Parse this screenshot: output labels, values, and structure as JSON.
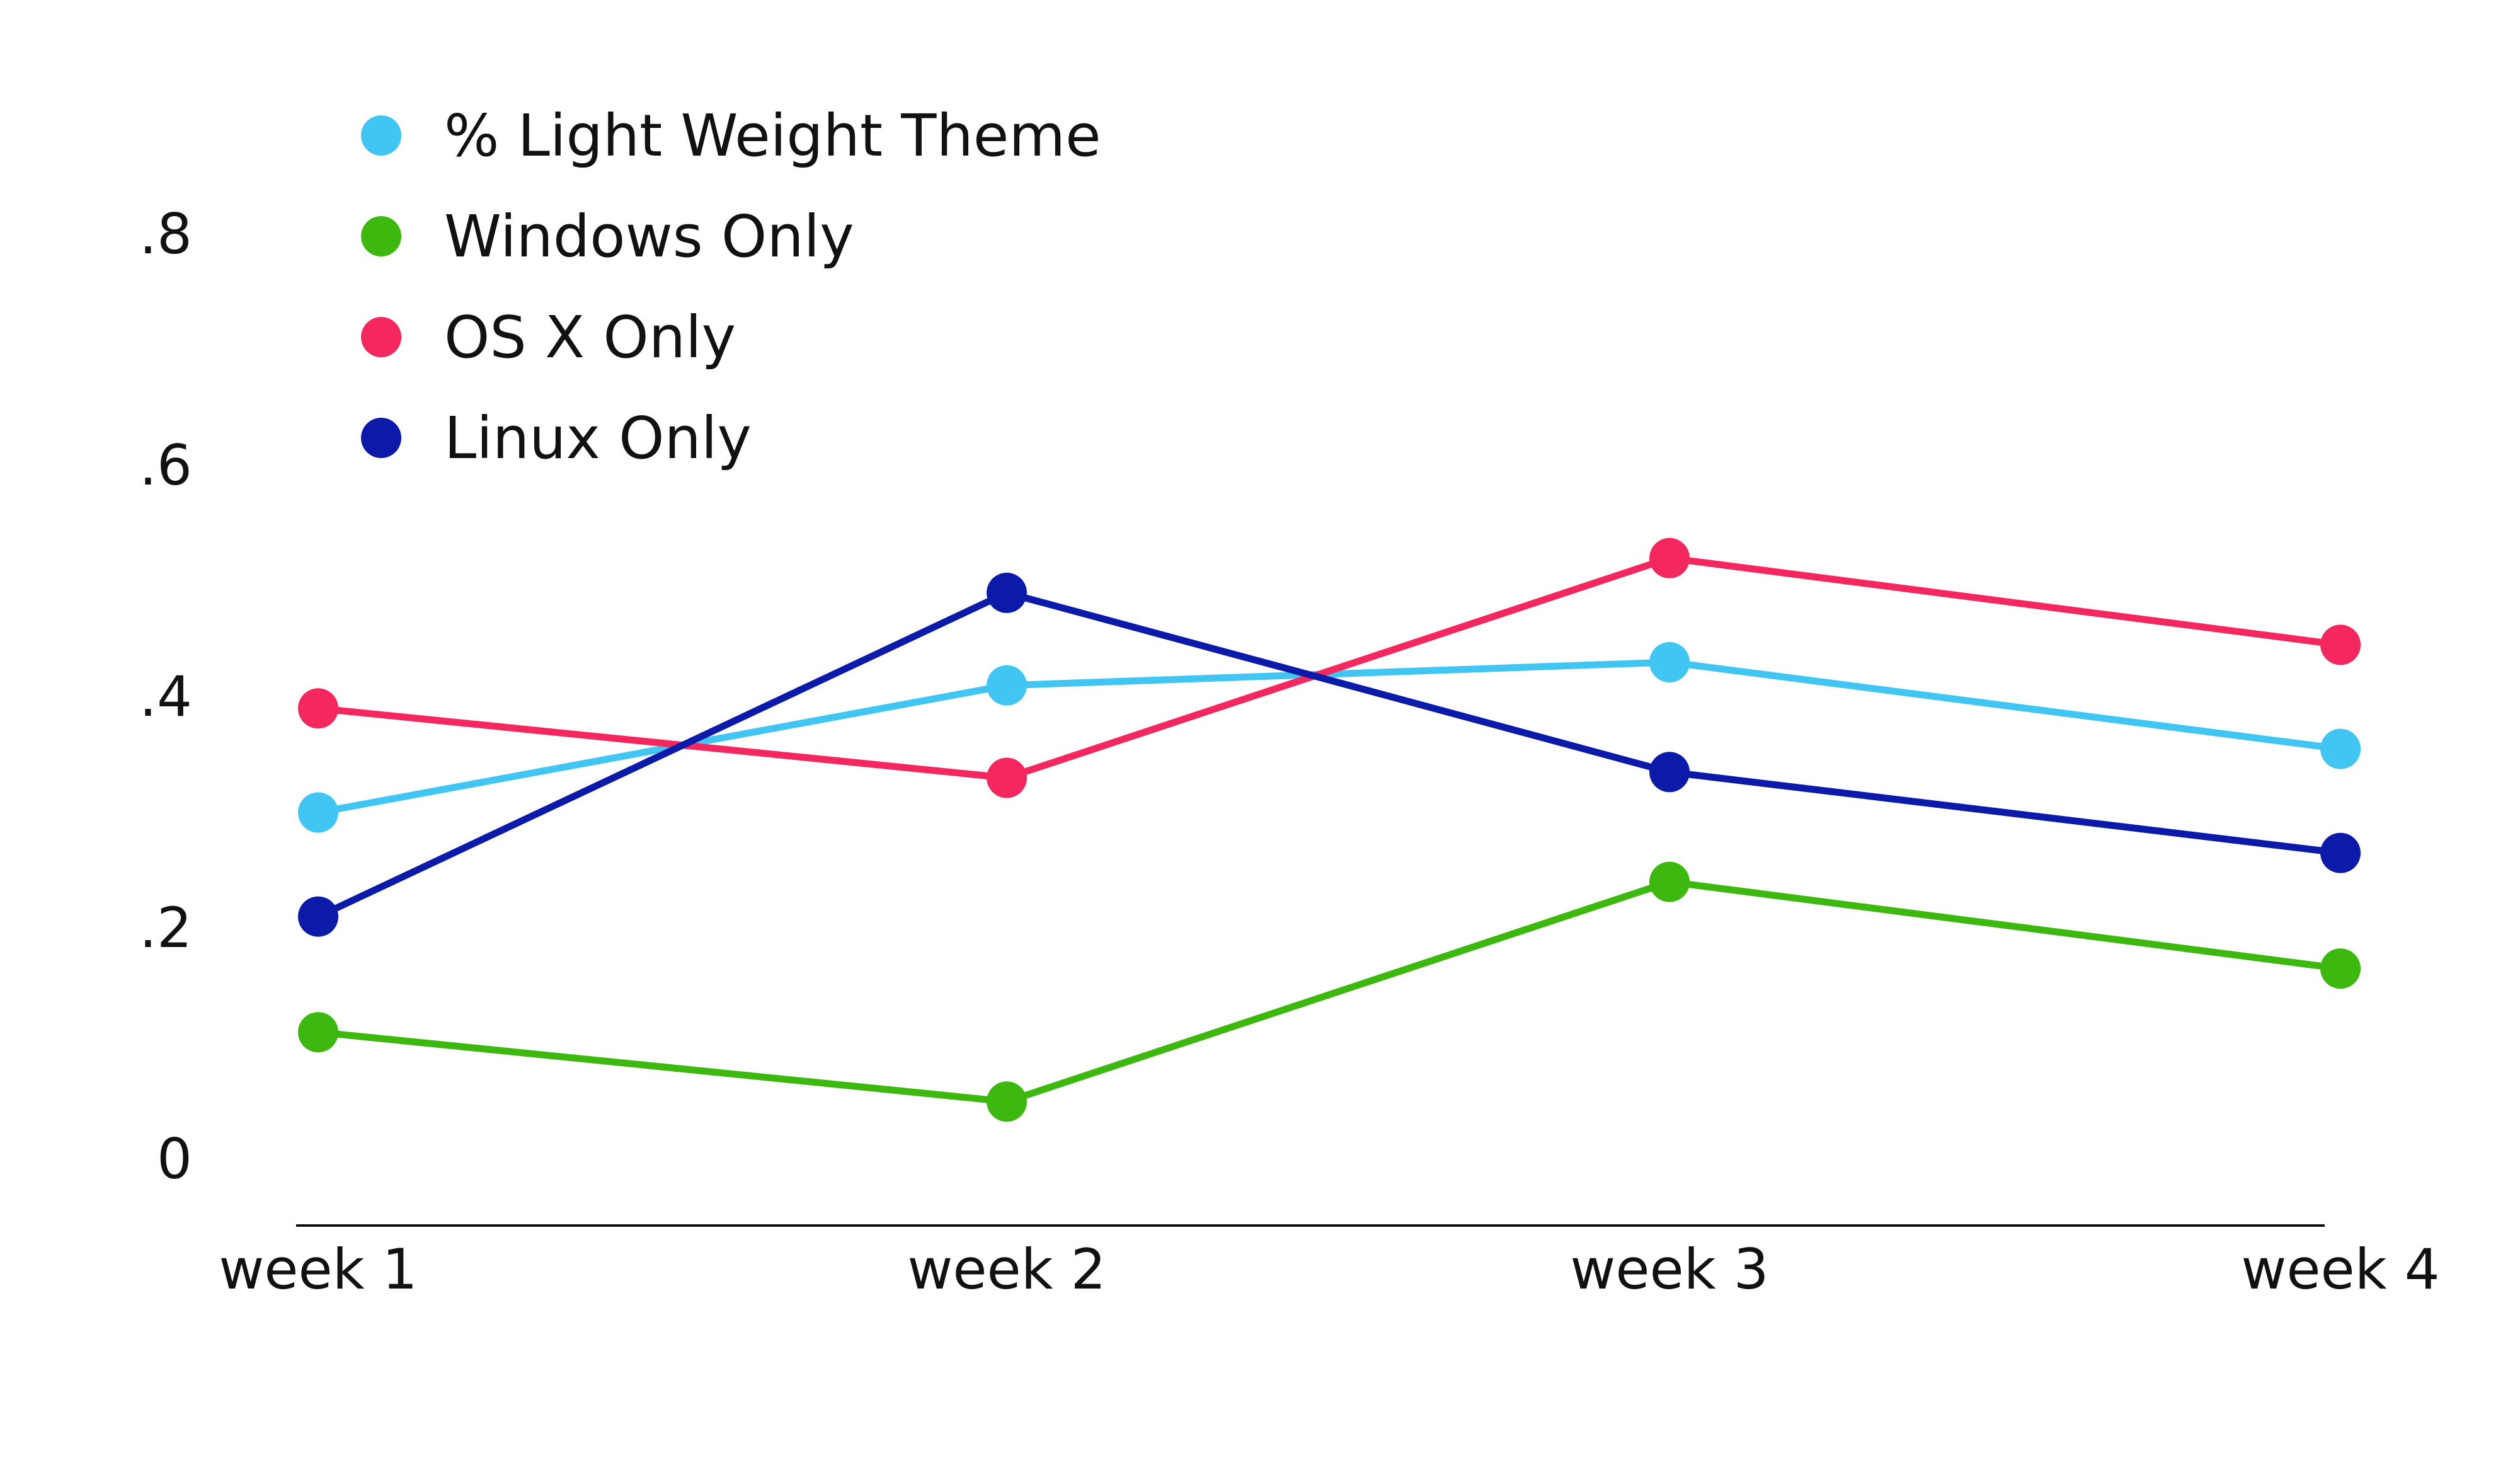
{
  "chart_data": {
    "type": "line",
    "title": "",
    "xlabel": "",
    "ylabel": "",
    "categories": [
      "week 1",
      "week 2",
      "week 3",
      "week 4"
    ],
    "y_ticks": [
      {
        "value": 0,
        "label": "0"
      },
      {
        "value": 0.2,
        "label": ".2"
      },
      {
        "value": 0.4,
        "label": ".4"
      },
      {
        "value": 0.6,
        "label": ".6"
      },
      {
        "value": 0.8,
        "label": ".8"
      }
    ],
    "ylim": [
      0,
      0.8
    ],
    "grid": false,
    "legend_position": "top-left",
    "series": [
      {
        "name": "% Light Weight Theme",
        "color": "#41c6f4",
        "values": [
          0.3,
          0.41,
          0.43,
          0.355
        ]
      },
      {
        "name": "Windows Only",
        "color": "#3cb80f",
        "values": [
          0.11,
          0.05,
          0.24,
          0.165
        ]
      },
      {
        "name": "OS X Only",
        "color": "#f4285f",
        "values": [
          0.39,
          0.33,
          0.52,
          0.445
        ]
      },
      {
        "name": "Linux Only",
        "color": "#0b1aa8",
        "values": [
          0.21,
          0.49,
          0.335,
          0.265
        ]
      }
    ]
  }
}
